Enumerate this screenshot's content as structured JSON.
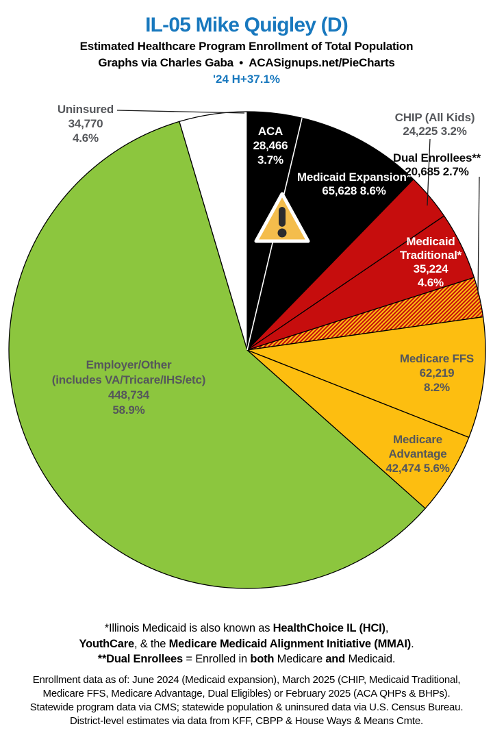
{
  "header": {
    "title": "IL-05 Mike Quigley (D)",
    "subtitle": "Estimated Healthcare Program Enrollment of Total Population",
    "credit": "Graphs via Charles Gaba • ACASignups.net/PieCharts",
    "tagline": "'24 H+37.1%",
    "accent_color": "#1878BE"
  },
  "chart_data": {
    "type": "pie",
    "title": "Estimated Healthcare Program Enrollment of Total Population",
    "units": "people",
    "direction": "clockwise",
    "start_angle_deg": 0,
    "segments": [
      {
        "name": "ACA",
        "value": "28,466",
        "pct": "3.7%",
        "number": 28466,
        "percent": 3.7,
        "color": "#000000"
      },
      {
        "name": "Medicaid Expansion*",
        "value": "65,628",
        "pct": "8.6%",
        "number": 65628,
        "percent": 8.6,
        "color": "#000000"
      },
      {
        "name": "CHIP (All Kids)",
        "value": "24,225",
        "pct": "3.2%",
        "number": 24225,
        "percent": 3.2,
        "color": "#C60D0D"
      },
      {
        "name": "Medicaid Traditional*",
        "value": "35,224",
        "pct": "4.6%",
        "number": 35224,
        "percent": 4.6,
        "color": "#C60D0D"
      },
      {
        "name": "Dual Enrollees**",
        "value": "20,685",
        "pct": "2.7%",
        "number": 20685,
        "percent": 2.7,
        "color": "hatch"
      },
      {
        "name": "Medicare FFS",
        "value": "62,219",
        "pct": "8.2%",
        "number": 62219,
        "percent": 8.2,
        "color": "#FDBE10"
      },
      {
        "name": "Medicare Advantage",
        "value": "42,474",
        "pct": "5.6%",
        "number": 42474,
        "percent": 5.6,
        "color": "#FDBE10"
      },
      {
        "name": "Employer/Other",
        "name2": "(includes VA/Tricare/IHS/etc)",
        "value": "448,734",
        "pct": "58.9%",
        "number": 448734,
        "percent": 58.9,
        "color": "#8CC63E"
      },
      {
        "name": "Uninsured",
        "value": "34,770",
        "pct": "4.6%",
        "number": 34770,
        "percent": 4.6,
        "color": "#FFFFFF"
      }
    ],
    "hatch_colors": [
      "#C60D0D",
      "#FDBE10"
    ],
    "annotations": [
      {
        "icon": "warning-triangle",
        "near": "ACA / Medicaid Expansion boundary"
      }
    ],
    "layout": {
      "center": [
        361,
        511
      ],
      "radius": 348,
      "white_divider_after_segment": 0
    }
  },
  "footnotes": {
    "medicaid_note": [
      [
        {
          "t": "*Illinois Medicaid is also known as ",
          "b": false
        },
        {
          "t": "HealthChoice IL (HCI)",
          "b": true
        },
        {
          "t": ",",
          "b": false
        }
      ],
      [
        {
          "t": "YouthCare",
          "b": true
        },
        {
          "t": ", & the ",
          "b": false
        },
        {
          "t": "Medicare Medicaid Alignment Initiative (MMAI)",
          "b": true
        },
        {
          "t": ".",
          "b": false
        }
      ],
      [
        {
          "t": "**Dual Enrollees",
          "b": true
        },
        {
          "t": " = Enrolled in ",
          "b": false
        },
        {
          "t": "both",
          "b": true
        },
        {
          "t": " Medicare ",
          "b": false
        },
        {
          "t": "and",
          "b": true
        },
        {
          "t": " Medicaid.",
          "b": false
        }
      ]
    ],
    "source_note": [
      "Enrollment data as of: June 2024 (Medicaid expansion), March 2025 (CHIP, Medicaid Traditional,",
      "Medicare FFS, Medicare Advantage, Dual Eligibles) or February 2025 (ACA QHPs & BHPs).",
      "Statewide program data via CMS; statewide population & uninsured data via U.S. Census Bureau.",
      "District-level estimates via data from KFF, CBPP & House Ways & Means Cmte."
    ]
  }
}
